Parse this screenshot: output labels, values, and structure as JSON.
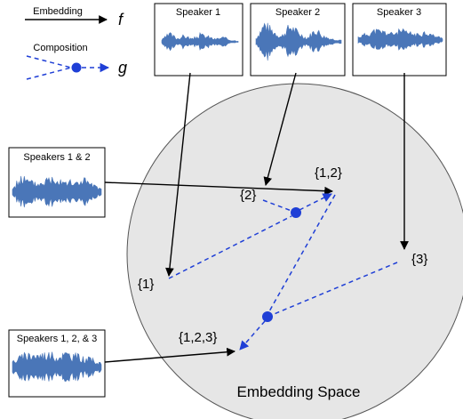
{
  "legend": {
    "embedding_label": "Embedding",
    "embedding_symbol": "f",
    "composition_label": "Composition",
    "composition_symbol": "g"
  },
  "speaker_boxes": [
    {
      "label": "Speaker 1"
    },
    {
      "label": "Speaker 2"
    },
    {
      "label": "Speaker 3"
    }
  ],
  "mixture_boxes": [
    {
      "label": "Speakers 1 & 2"
    },
    {
      "label": "Speakers 1, 2, & 3"
    }
  ],
  "embeddings": {
    "e1": "{1}",
    "e2": "{2}",
    "e3": "{3}",
    "e12": "{1,2}",
    "e123": "{1,2,3}"
  },
  "space_label": "Embedding Space",
  "colors": {
    "waveform": "#4a76b8",
    "composition": "#1f3fd6",
    "space_fill": "#e6e6e6"
  }
}
